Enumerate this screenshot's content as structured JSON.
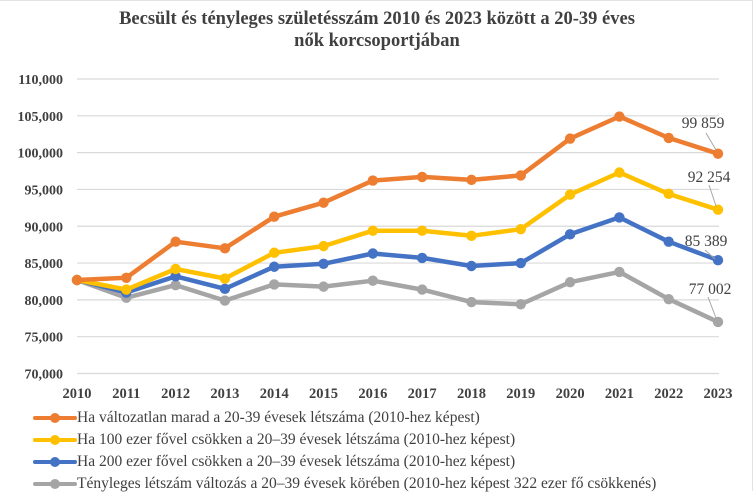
{
  "chart_data": {
    "type": "line",
    "title": "Becsült és tényleges születésszám 2010 és 2023 között a 20-39 éves nők korcsoportjában",
    "title_lines": [
      "Becsült és tényleges születésszám 2010 és 2023 között a 20-39 éves",
      "nők korcsoportjában"
    ],
    "xlabel": "",
    "ylabel": "",
    "x": [
      "2010",
      "2011",
      "2012",
      "2013",
      "2014",
      "2015",
      "2016",
      "2017",
      "2018",
      "2019",
      "2020",
      "2021",
      "2022",
      "2023"
    ],
    "ylim": [
      70000,
      110000
    ],
    "yticks": [
      70000,
      75000,
      80000,
      85000,
      90000,
      95000,
      100000,
      105000,
      110000
    ],
    "ytick_labels": [
      "70,000",
      "75,000",
      "80,000",
      "85,000",
      "90,000",
      "95,000",
      "100,000",
      "105,000",
      "110,000"
    ],
    "grid": true,
    "legend_position": "bottom",
    "series": [
      {
        "name": "Ha változatlan marad a 20-39 évesek létszáma (2010-hez képest)",
        "color": "#ED7D31",
        "values": [
          82700,
          83000,
          87900,
          87000,
          91300,
          93200,
          96200,
          96700,
          96300,
          96900,
          101900,
          104900,
          102000,
          99859
        ],
        "end_label": "99 859"
      },
      {
        "name": "Ha 100 ezer fővel csökken a 20–39 évesek létszáma (2010-hez képest)",
        "color": "#FFC000",
        "values": [
          82700,
          81400,
          84200,
          82900,
          86400,
          87300,
          89400,
          89400,
          88700,
          89600,
          94300,
          97300,
          94400,
          92254
        ],
        "end_label": "92 254"
      },
      {
        "name": "Ha 200 ezer fővel csökken a 20–39 évesek létszáma (2010-hez képest)",
        "color": "#4472C4",
        "values": [
          82700,
          81000,
          83200,
          81500,
          84500,
          84900,
          86300,
          85700,
          84600,
          85000,
          88900,
          91200,
          87900,
          85389
        ],
        "end_label": "85 389"
      },
      {
        "name": "Tényleges létszám változás a 20–39 évesek körében (2010-hez képest 322 ezer fő csökkenés)",
        "color": "#A5A5A5",
        "values": [
          82700,
          80300,
          82000,
          79900,
          82100,
          81800,
          82600,
          81400,
          79700,
          79400,
          82400,
          83800,
          80100,
          77002
        ],
        "end_label": "77 002"
      }
    ]
  }
}
